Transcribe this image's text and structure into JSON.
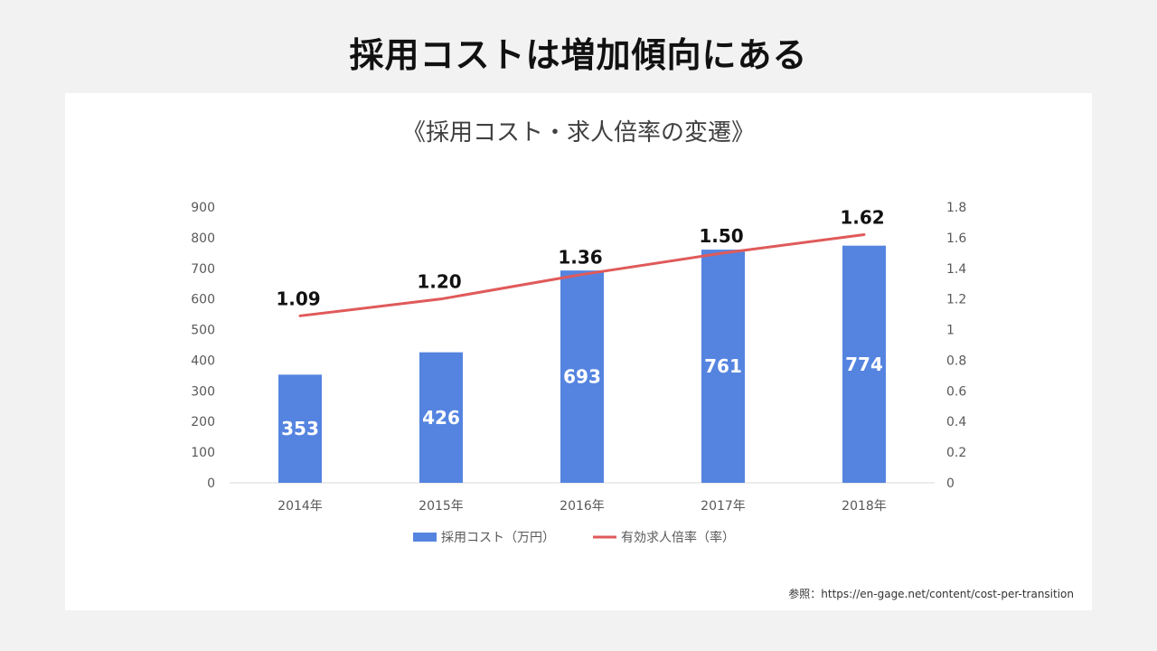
{
  "page_title": "採用コストは増加傾向にある",
  "source_note": "参照：https://en-gage.net/content/cost-per-transition",
  "chart_data": {
    "type": "bar",
    "title": "《採用コスト・求人倍率の変遷》",
    "categories": [
      "2014年",
      "2015年",
      "2016年",
      "2017年",
      "2018年"
    ],
    "series": [
      {
        "name": "採用コスト（万円）",
        "type": "bar",
        "axis": "left",
        "color": "#5584e0",
        "values": [
          353,
          426,
          693,
          761,
          774
        ],
        "labels": [
          "353",
          "426",
          "693",
          "761",
          "774"
        ]
      },
      {
        "name": "有効求人倍率（率）",
        "type": "line",
        "axis": "right",
        "color": "#e05a5a",
        "values": [
          1.09,
          1.2,
          1.36,
          1.5,
          1.62
        ],
        "labels": [
          "1.09",
          "1.20",
          "1.36",
          "1.50",
          "1.62"
        ]
      }
    ],
    "y_left": {
      "min": 0,
      "max": 900,
      "ticks": [
        "0",
        "100",
        "200",
        "300",
        "400",
        "500",
        "600",
        "700",
        "800",
        "900"
      ]
    },
    "y_right": {
      "min": 0,
      "max": 1.8,
      "ticks": [
        "0",
        "0.2",
        "0.4",
        "0.6",
        "0.8",
        "1",
        "1.2",
        "1.4",
        "1.6",
        "1.8"
      ]
    },
    "grid": false,
    "legend_position": "bottom"
  }
}
